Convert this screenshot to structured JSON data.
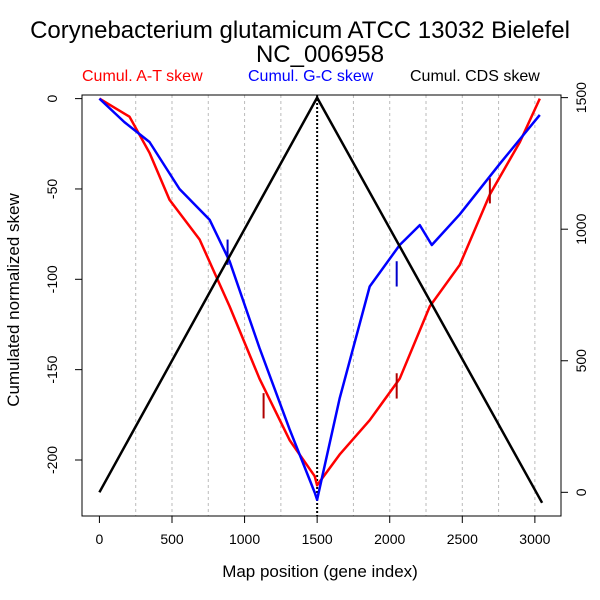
{
  "chart_data": {
    "type": "line",
    "title": "Corynebacterium glutamicum ATCC 13032 Bielefel",
    "subtitle": "NC_006958",
    "xlabel": "Map position (gene index)",
    "ylabel": "Cumulated normalized skew",
    "xlim": [
      -120,
      3180
    ],
    "ylim": [
      -231,
      2
    ],
    "y2lim": [
      -90,
      1510
    ],
    "xticks": [
      0,
      500,
      1000,
      1500,
      2000,
      2500,
      3000
    ],
    "yticks": [
      0,
      -50,
      -100,
      -150,
      -200
    ],
    "y2ticks": [
      0,
      500,
      1000,
      1500
    ],
    "grid_x": [
      250,
      500,
      750,
      1000,
      1250,
      1750,
      2000,
      2250,
      2500,
      2750,
      3000
    ],
    "divider_x": 1500,
    "series": [
      {
        "name": "Cumul. A-T skew",
        "color": "#ff0000",
        "axis": "left",
        "x": [
          0,
          207,
          345,
          483,
          690,
          897,
          1103,
          1310,
          1483,
          1500,
          1655,
          1862,
          2069,
          2276,
          2483,
          2690,
          2897,
          3034
        ],
        "y": [
          0,
          -10,
          -30,
          -56,
          -78,
          -115,
          -155,
          -189,
          -209,
          -214,
          -197,
          -178,
          -155,
          -115,
          -92,
          -53,
          -24,
          0
        ],
        "markers": [
          [
            1131,
            -163,
            -177
          ],
          [
            2048,
            -152,
            -166
          ],
          [
            2690,
            -44,
            -58
          ]
        ]
      },
      {
        "name": "Cumul. G-C skew",
        "color": "#0000ff",
        "axis": "left",
        "x": [
          0,
          172,
          345,
          552,
          759,
          897,
          1103,
          1310,
          1483,
          1500,
          1655,
          1862,
          2069,
          2207,
          2290,
          2483,
          2759,
          3034
        ],
        "y": [
          0,
          -13,
          -24,
          -50,
          -67,
          -90,
          -138,
          -183,
          -218,
          -222,
          -166,
          -104,
          -81,
          -70,
          -81,
          -64,
          -36,
          -9
        ],
        "markers": [
          [
            883,
            -78,
            -92
          ],
          [
            2048,
            -90,
            -104
          ]
        ]
      },
      {
        "name": "Cumul. CDS skew",
        "color": "#000000",
        "axis": "right",
        "x": [
          0,
          1500,
          3050
        ],
        "y": [
          0,
          1500,
          -40
        ],
        "markers": []
      }
    ],
    "legend_placement": "top"
  }
}
